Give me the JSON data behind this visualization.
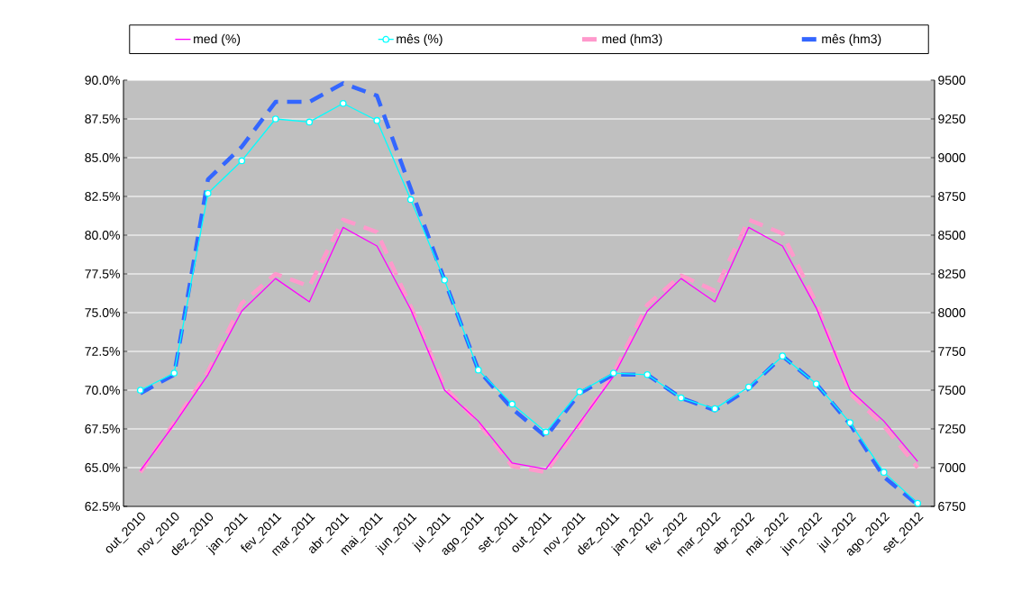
{
  "chart_data": {
    "type": "line",
    "categories": [
      "out_2010",
      "nov_2010",
      "dez_2010",
      "jan_2011",
      "fev_2011",
      "mar_2011",
      "abr_2011",
      "mai_2011",
      "jun_2011",
      "jul_2011",
      "ago_2011",
      "set_2011",
      "out_2011",
      "nov_2011",
      "dez_2011",
      "jan_2012",
      "fev_2012",
      "mar_2012",
      "abr_2012",
      "mai_2012",
      "jun_2012",
      "jul_2012",
      "ago_2012",
      "set_2012"
    ],
    "series": [
      {
        "name": "med (%)",
        "color": "#ff00ff",
        "line_style": "solid",
        "marker": "none",
        "values": [
          64.8,
          67.8,
          71.0,
          75.1,
          77.2,
          75.7,
          80.5,
          79.3,
          75.2,
          70.0,
          68.0,
          65.3,
          64.9,
          67.9,
          70.9,
          75.1,
          77.2,
          75.7,
          80.5,
          79.3,
          75.3,
          70.0,
          68.0,
          65.4
        ]
      },
      {
        "name": "mês (%)",
        "color": "#00ffff",
        "line_style": "solid",
        "marker": "circle",
        "values": [
          70.0,
          71.1,
          82.7,
          84.8,
          87.5,
          87.3,
          88.5,
          87.4,
          82.3,
          77.1,
          71.3,
          69.1,
          67.3,
          69.9,
          71.1,
          71.0,
          69.5,
          68.8,
          70.2,
          72.2,
          70.4,
          67.9,
          64.7,
          62.7
        ]
      },
      {
        "name": "med (hm3)",
        "color": "#ff99cc",
        "line_style": "dashed",
        "marker": "none",
        "axis": "y2",
        "values": [
          6970,
          7290,
          7620,
          8060,
          8250,
          8170,
          8600,
          8520,
          8040,
          7520,
          7290,
          7010,
          6970,
          7280,
          7610,
          8050,
          8240,
          8140,
          8600,
          8510,
          8060,
          7480,
          7270,
          7000
        ]
      },
      {
        "name": "mês (hm3)",
        "color": "#3366ff",
        "line_style": "dashed",
        "marker": "none",
        "axis": "y2",
        "values": [
          7480,
          7600,
          8860,
          9070,
          9360,
          9360,
          9480,
          9400,
          8800,
          8210,
          7630,
          7380,
          7200,
          7480,
          7600,
          7600,
          7450,
          7370,
          7510,
          7720,
          7540,
          7280,
          6940,
          6760
        ]
      }
    ],
    "ylim": [
      62.5,
      90.0
    ],
    "yticks": [
      {
        "value": 62.5,
        "label": "62.5%"
      },
      {
        "value": 65.0,
        "label": "65.0%"
      },
      {
        "value": 67.5,
        "label": "67.5%"
      },
      {
        "value": 70.0,
        "label": "70.0%"
      },
      {
        "value": 72.5,
        "label": "72.5%"
      },
      {
        "value": 75.0,
        "label": "75.0%"
      },
      {
        "value": 77.5,
        "label": "77.5%"
      },
      {
        "value": 80.0,
        "label": "80.0%"
      },
      {
        "value": 82.5,
        "label": "82.5%"
      },
      {
        "value": 85.0,
        "label": "85.0%"
      },
      {
        "value": 87.5,
        "label": "87.5%"
      },
      {
        "value": 90.0,
        "label": "90.0%"
      }
    ],
    "y2lim": [
      6750,
      9500
    ],
    "y2ticks": [
      6750,
      7000,
      7250,
      7500,
      7750,
      8000,
      8250,
      8500,
      8750,
      9000,
      9250,
      9500
    ],
    "grid": "y",
    "legend": "top"
  }
}
